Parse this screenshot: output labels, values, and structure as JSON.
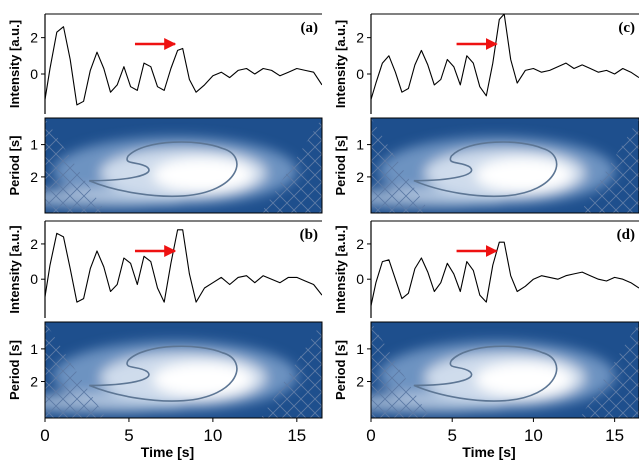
{
  "chart_data": [
    {
      "panel": "(a)",
      "type": "line",
      "ylabel": "Intensity [a.u.]",
      "xlim": [
        0,
        16.5
      ],
      "yticks": [
        "2",
        "0"
      ],
      "arrow_at": 8.1,
      "x": [
        0,
        0.3,
        0.7,
        1.1,
        1.5,
        1.9,
        2.3,
        2.7,
        3.1,
        3.5,
        3.9,
        4.3,
        4.7,
        5.1,
        5.5,
        5.9,
        6.3,
        6.7,
        7.1,
        7.5,
        7.9,
        8.2,
        8.6,
        9.0,
        9.5,
        10,
        10.5,
        11,
        11.5,
        12,
        12.5,
        13,
        13.5,
        14,
        14.5,
        15,
        15.5,
        16,
        16.5
      ],
      "y": [
        -1.4,
        0.3,
        2.3,
        2.6,
        0.8,
        -1.7,
        -1.5,
        0.2,
        1.2,
        0.3,
        -1.0,
        -0.6,
        0.4,
        -0.7,
        -0.9,
        0.6,
        0.4,
        -0.7,
        -0.9,
        0.3,
        1.3,
        1.4,
        -0.3,
        -1.0,
        -0.6,
        -0.1,
        0.1,
        -0.2,
        0.2,
        0.3,
        0.0,
        0.3,
        0.2,
        -0.1,
        0.1,
        0.3,
        0.2,
        0.1,
        -0.6
      ]
    },
    {
      "panel": "(a)",
      "type": "heatmap",
      "ylabel": "Period [s]",
      "yticks": [
        "1",
        "2"
      ],
      "xlim": [
        0,
        16.5
      ]
    },
    {
      "panel": "(b)",
      "type": "line",
      "ylabel": "Intensity [a.u.]",
      "xlim": [
        0,
        16.5
      ],
      "yticks": [
        "2",
        "0"
      ],
      "arrow_at": 8.1,
      "x": [
        0,
        0.3,
        0.7,
        1.1,
        1.5,
        1.9,
        2.3,
        2.7,
        3.1,
        3.5,
        3.9,
        4.3,
        4.7,
        5.1,
        5.5,
        5.9,
        6.3,
        6.7,
        7.1,
        7.5,
        7.9,
        8.2,
        8.6,
        9.0,
        9.5,
        10,
        10.5,
        11,
        11.5,
        12,
        12.5,
        13,
        13.5,
        14,
        14.5,
        15,
        15.5,
        16,
        16.5
      ],
      "y": [
        -1.0,
        0.8,
        2.6,
        2.4,
        0.6,
        -1.3,
        -1.1,
        0.6,
        1.6,
        0.7,
        -0.7,
        -0.3,
        1.2,
        0.9,
        -0.3,
        1.3,
        1.0,
        -0.5,
        -1.3,
        0.9,
        2.8,
        2.8,
        0.3,
        -1.3,
        -0.5,
        -0.2,
        0.1,
        -0.3,
        0.1,
        0.2,
        -0.2,
        0.2,
        0.0,
        -0.2,
        0.1,
        0.1,
        -0.1,
        -0.3,
        -0.9
      ]
    },
    {
      "panel": "(b)",
      "type": "heatmap",
      "ylabel": "Period [s]",
      "yticks": [
        "1",
        "2"
      ],
      "xlim": [
        0,
        16.5
      ],
      "xticks": [
        "0",
        "5",
        "10",
        "15"
      ],
      "xlabel": "Time [s]"
    },
    {
      "panel": "(c)",
      "type": "line",
      "ylabel": "Intensity [a.u.]",
      "xlim": [
        0,
        16.5
      ],
      "yticks": [
        "2",
        "0"
      ],
      "arrow_at": 8.1,
      "x": [
        0,
        0.3,
        0.7,
        1.1,
        1.5,
        1.9,
        2.3,
        2.7,
        3.1,
        3.5,
        3.9,
        4.3,
        4.7,
        5.1,
        5.5,
        5.9,
        6.3,
        6.7,
        7.1,
        7.5,
        7.9,
        8.2,
        8.6,
        9.0,
        9.5,
        10,
        10.5,
        11,
        11.5,
        12,
        12.5,
        13,
        13.5,
        14,
        14.5,
        15,
        15.5,
        16,
        16.5
      ],
      "y": [
        -1.4,
        -0.5,
        0.6,
        1.0,
        0.1,
        -1.0,
        -0.8,
        0.5,
        1.3,
        0.5,
        -0.6,
        -0.3,
        0.8,
        0.4,
        -0.6,
        1.0,
        0.6,
        -0.7,
        -1.2,
        0.6,
        3.0,
        3.3,
        0.8,
        -0.5,
        0.2,
        0.3,
        0.1,
        0.2,
        0.4,
        0.6,
        0.3,
        0.5,
        0.3,
        0.1,
        0.2,
        0.0,
        0.3,
        0.1,
        -0.2
      ]
    },
    {
      "panel": "(c)",
      "type": "heatmap",
      "ylabel": "Period [s]",
      "yticks": [
        "1",
        "2"
      ],
      "xlim": [
        0,
        16.5
      ]
    },
    {
      "panel": "(d)",
      "type": "line",
      "ylabel": "Intensity [a.u.]",
      "xlim": [
        0,
        16.5
      ],
      "yticks": [
        "2",
        "0"
      ],
      "arrow_at": 8.1,
      "x": [
        0,
        0.3,
        0.7,
        1.1,
        1.5,
        1.9,
        2.3,
        2.7,
        3.1,
        3.5,
        3.9,
        4.3,
        4.7,
        5.1,
        5.5,
        5.9,
        6.3,
        6.7,
        7.1,
        7.5,
        7.9,
        8.2,
        8.6,
        9.0,
        9.5,
        10,
        10.5,
        11,
        11.5,
        12,
        12.5,
        13,
        13.5,
        14,
        14.5,
        15,
        15.5,
        16,
        16.5
      ],
      "y": [
        -1.5,
        -0.2,
        1.0,
        1.1,
        0.0,
        -1.1,
        -0.8,
        0.6,
        1.2,
        0.4,
        -0.7,
        -0.2,
        0.9,
        0.3,
        -0.7,
        1.0,
        0.5,
        -0.9,
        -1.3,
        0.8,
        2.1,
        2.1,
        0.2,
        -0.7,
        -0.4,
        0.0,
        0.2,
        0.1,
        0.0,
        0.2,
        0.3,
        0.4,
        0.2,
        0.0,
        -0.1,
        0.1,
        0.0,
        -0.2,
        -0.5
      ]
    },
    {
      "panel": "(d)",
      "type": "heatmap",
      "ylabel": "Period [s]",
      "yticks": [
        "1",
        "2"
      ],
      "xlim": [
        0,
        16.5
      ],
      "xticks": [
        "0",
        "5",
        "10",
        "15"
      ],
      "xlabel": "Time [s]"
    }
  ],
  "colors": {
    "signal": "#000000",
    "arrow": "#ee1111",
    "spectrum_dark": "#1e4f8d",
    "spectrum_mid": "#6d93c1",
    "spectrum_light": "#cfdcec",
    "contour": "#5d7694"
  }
}
